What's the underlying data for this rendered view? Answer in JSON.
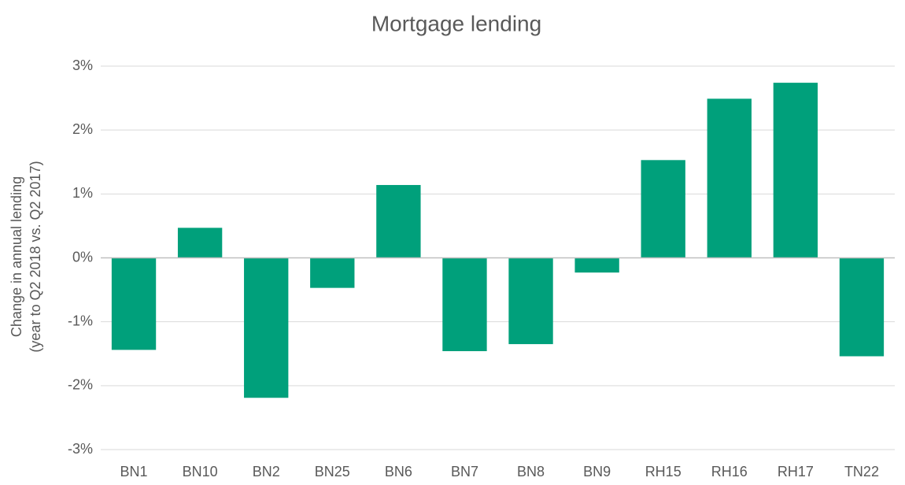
{
  "chart_data": {
    "type": "bar",
    "title": "Mortgage lending",
    "y_label": [
      "Change in annual lending",
      "(year to Q2 2018 vs. Q2 2017)"
    ],
    "categories": [
      "BN1",
      "BN10",
      "BN2",
      "BN25",
      "BN6",
      "BN7",
      "BN8",
      "BN9",
      "RH15",
      "RH16",
      "RH17",
      "TN22"
    ],
    "values": [
      -1.44,
      0.47,
      -2.19,
      -0.47,
      1.14,
      -1.46,
      -1.35,
      -0.23,
      1.53,
      2.49,
      2.74,
      -1.54
    ],
    "color": "#00a07b",
    "ylim": [
      -3,
      3
    ],
    "yticks": [
      {
        "value": -3,
        "label": "-3%"
      },
      {
        "value": -2,
        "label": "-2%"
      },
      {
        "value": -1,
        "label": "-1%"
      },
      {
        "value": 0,
        "label": "0%"
      },
      {
        "value": 1,
        "label": "1%"
      },
      {
        "value": 2,
        "label": "2%"
      },
      {
        "value": 3,
        "label": "3%"
      }
    ],
    "grid": true
  }
}
